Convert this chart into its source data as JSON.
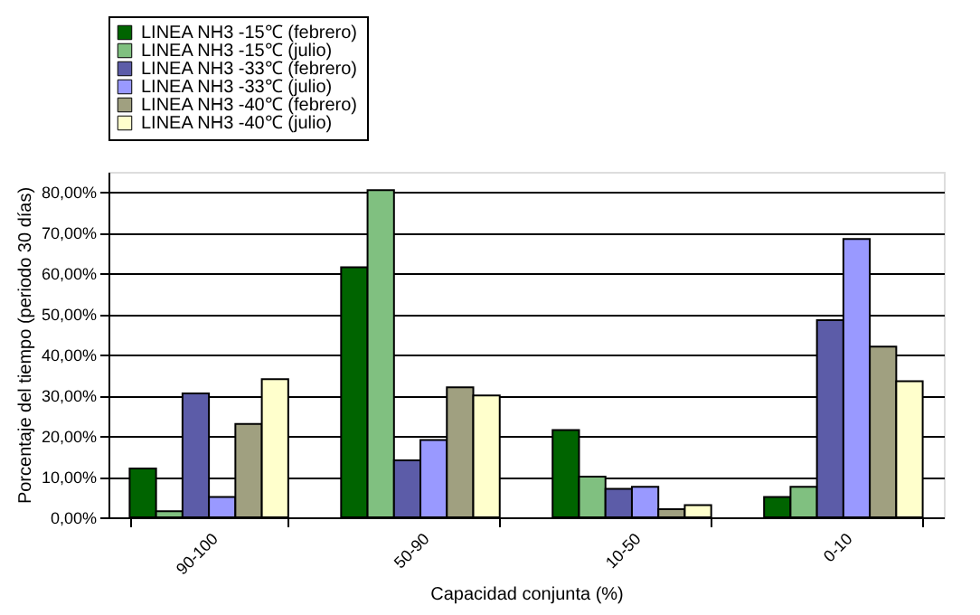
{
  "chart_data": {
    "type": "bar",
    "xlabel": "Capacidad conjunta (%)",
    "ylabel": "Porcentaje del tiempo (periodo 30 días)",
    "categories": [
      "90-100",
      "50-90",
      "10-50",
      "0-10"
    ],
    "series": [
      {
        "name": "LINEA NH3 -15℃ (febrero)",
        "color": "#006400",
        "values": [
          12.0,
          61.5,
          21.5,
          5.0
        ]
      },
      {
        "name": "LINEA NH3 -15℃ (julio)",
        "color": "#80c080",
        "values": [
          1.5,
          80.5,
          10.0,
          7.5
        ]
      },
      {
        "name": "LINEA NH3 -33℃ (febrero)",
        "color": "#5c5ca8",
        "values": [
          30.5,
          14.0,
          7.0,
          48.5
        ]
      },
      {
        "name": "LINEA NH3 -33℃ (julio)",
        "color": "#9999ff",
        "values": [
          5.0,
          19.0,
          7.5,
          68.5
        ]
      },
      {
        "name": "LINEA NH3 -40℃ (febrero)",
        "color": "#a0a080",
        "values": [
          23.0,
          32.0,
          2.0,
          42.0
        ]
      },
      {
        "name": "LINEA NH3 -40℃ (julio)",
        "color": "#ffffcc",
        "values": [
          34.0,
          30.0,
          3.0,
          33.5
        ]
      }
    ],
    "ylim": [
      0,
      85
    ],
    "yticks": [
      {
        "value": 0,
        "label": "0,00%"
      },
      {
        "value": 10,
        "label": "10,00%"
      },
      {
        "value": 20,
        "label": "20,00%"
      },
      {
        "value": 30,
        "label": "30,00%"
      },
      {
        "value": 40,
        "label": "40,00%"
      },
      {
        "value": 50,
        "label": "50,00%"
      },
      {
        "value": 60,
        "label": "60,00%"
      },
      {
        "value": 70,
        "label": "70,00%"
      },
      {
        "value": 80,
        "label": "80,00%"
      }
    ],
    "grid": "y",
    "legend": "top"
  }
}
